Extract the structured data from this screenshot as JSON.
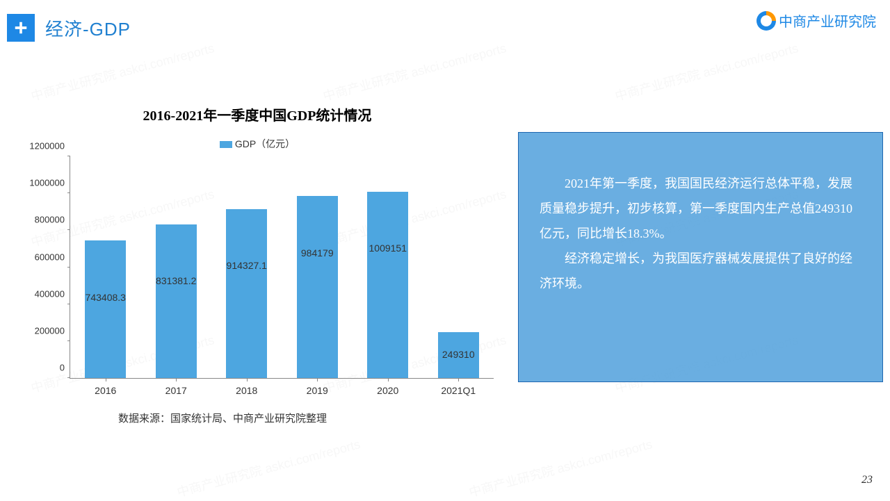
{
  "header": {
    "title": "经济-GDP"
  },
  "logo": {
    "text": "中商产业研究院"
  },
  "chart": {
    "type": "bar",
    "title": "2016-2021年一季度中国GDP统计情况",
    "legend_label": "GDP（亿元）",
    "categories": [
      "2016",
      "2017",
      "2018",
      "2019",
      "2020",
      "2021Q1"
    ],
    "values": [
      743408.3,
      831381.2,
      914327.1,
      984179,
      1009151,
      249310
    ],
    "value_labels": [
      "743408.3",
      "831381.2",
      "914327.1",
      "984179",
      "1009151",
      "249310"
    ],
    "bar_color": "#4da6e0",
    "ylim": [
      0,
      1200000
    ],
    "ytick_step": 200000,
    "yticks": [
      "0",
      "200000",
      "400000",
      "600000",
      "800000",
      "1000000",
      "1200000"
    ],
    "axis_color": "#888888",
    "label_fontsize": 14,
    "title_fontsize": 20,
    "bar_width": 0.58,
    "background_color": "#ffffff",
    "source": "数据来源：国家统计局、中商产业研究院整理"
  },
  "panel": {
    "bg_color": "rgba(80,160,220,0.85)",
    "border_color": "#1e66b0",
    "text_color": "#ffffff",
    "paragraphs": [
      "2021年第一季度，我国国民经济运行总体平稳，发展质量稳步提升，初步核算，第一季度国内生产总值249310亿元，同比增长18.3%。",
      "经济稳定增长，为我国医疗器械发展提供了良好的经济环境。"
    ]
  },
  "page_number": "23",
  "watermark_text": "中商产业研究院 askci.com/reports"
}
